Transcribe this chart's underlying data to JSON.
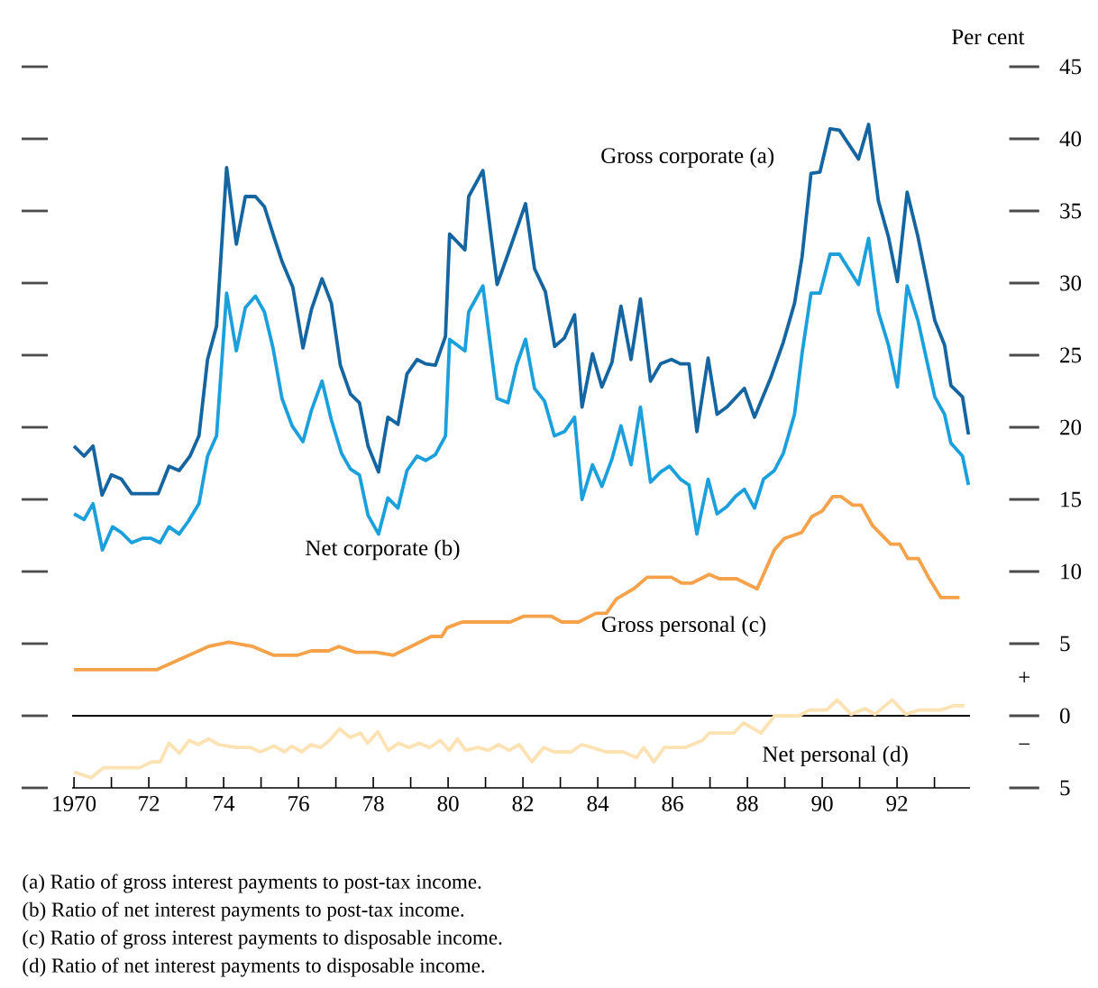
{
  "chart_data": {
    "type": "line",
    "ylabel": "Per cent",
    "xlim": [
      1969.95,
      1993.95
    ],
    "ylim": [
      -5,
      45
    ],
    "xticks": [
      {
        "value": 1970,
        "label": "1970"
      },
      {
        "value": 1971,
        "label": null
      },
      {
        "value": 1972,
        "label": "72"
      },
      {
        "value": 1973,
        "label": null
      },
      {
        "value": 1974,
        "label": "74"
      },
      {
        "value": 1975,
        "label": null
      },
      {
        "value": 1976,
        "label": "76"
      },
      {
        "value": 1977,
        "label": null
      },
      {
        "value": 1978,
        "label": "78"
      },
      {
        "value": 1979,
        "label": null
      },
      {
        "value": 1980,
        "label": "80"
      },
      {
        "value": 1981,
        "label": null
      },
      {
        "value": 1982,
        "label": "82"
      },
      {
        "value": 1983,
        "label": null
      },
      {
        "value": 1984,
        "label": "84"
      },
      {
        "value": 1985,
        "label": null
      },
      {
        "value": 1986,
        "label": "86"
      },
      {
        "value": 1987,
        "label": null
      },
      {
        "value": 1988,
        "label": "88"
      },
      {
        "value": 1989,
        "label": null
      },
      {
        "value": 1990,
        "label": "90"
      },
      {
        "value": 1991,
        "label": null
      },
      {
        "value": 1992,
        "label": "92"
      },
      {
        "value": 1993,
        "label": null
      }
    ],
    "yticks": [
      {
        "value": -5,
        "label": "5"
      },
      0,
      5,
      10,
      15,
      20,
      25,
      30,
      35,
      40,
      45
    ],
    "ref_lines": [
      {
        "axis": "y",
        "value": 0,
        "color": "#000000"
      }
    ],
    "series": [
      {
        "name": "Gross corporate (a)",
        "color": "#1565a0",
        "x": [
          1970.0,
          1970.27,
          1970.51,
          1970.75,
          1971.0,
          1971.27,
          1971.54,
          1972.25,
          1972.54,
          1972.81,
          1973.1,
          1973.34,
          1973.57,
          1973.81,
          1974.08,
          1974.34,
          1974.58,
          1974.85,
          1975.09,
          1975.32,
          1975.56,
          1975.85,
          1976.12,
          1976.35,
          1976.63,
          1976.88,
          1977.12,
          1977.39,
          1977.63,
          1977.86,
          1978.14,
          1978.39,
          1978.66,
          1978.9,
          1979.17,
          1979.4,
          1979.66,
          1979.93,
          1980.04,
          1980.45,
          1980.55,
          1980.93,
          1981.31,
          1981.6,
          1982.07,
          1982.31,
          1982.6,
          1982.85,
          1983.11,
          1983.38,
          1983.58,
          1983.86,
          1984.11,
          1984.38,
          1984.62,
          1984.89,
          1985.14,
          1985.41,
          1985.68,
          1985.97,
          1986.21,
          1986.44,
          1986.65,
          1986.95,
          1987.19,
          1987.45,
          1987.92,
          1988.19,
          1988.62,
          1988.96,
          1989.26,
          1989.46,
          1989.7,
          1989.94,
          1990.21,
          1990.46,
          1990.97,
          1991.24,
          1991.5,
          1991.77,
          1992.01,
          1992.27,
          1992.56,
          1993.01,
          1993.27,
          1993.44,
          1993.75,
          1993.91
        ],
        "values": [
          18.7,
          18.0,
          18.7,
          15.3,
          16.7,
          16.4,
          15.4,
          15.4,
          17.3,
          17.0,
          18.0,
          19.4,
          24.7,
          27.0,
          38.0,
          32.7,
          36.0,
          36.0,
          35.3,
          33.4,
          31.5,
          29.7,
          25.5,
          28.2,
          30.3,
          28.6,
          24.3,
          22.3,
          21.7,
          18.7,
          16.9,
          20.7,
          20.2,
          23.7,
          24.7,
          24.4,
          24.3,
          26.3,
          33.4,
          32.3,
          36.0,
          37.8,
          29.9,
          32.0,
          35.5,
          31.0,
          29.4,
          25.6,
          26.2,
          27.8,
          21.4,
          25.1,
          22.8,
          24.5,
          28.4,
          24.7,
          28.9,
          23.2,
          24.4,
          24.7,
          24.4,
          24.4,
          19.7,
          24.8,
          20.9,
          21.4,
          22.7,
          20.7,
          23.4,
          25.9,
          28.6,
          31.8,
          37.6,
          37.7,
          40.7,
          40.6,
          38.6,
          41.0,
          35.7,
          33.2,
          30.1,
          36.3,
          33.2,
          27.4,
          25.7,
          22.9,
          22.1,
          19.5
        ]
      },
      {
        "name": "Net corporate (b)",
        "color": "#1ca0dc",
        "x": [
          1970.0,
          1970.27,
          1970.51,
          1970.76,
          1971.03,
          1971.27,
          1971.54,
          1971.83,
          1972.06,
          1972.3,
          1972.54,
          1972.81,
          1973.06,
          1973.34,
          1973.57,
          1973.81,
          1974.08,
          1974.34,
          1974.58,
          1974.85,
          1975.09,
          1975.32,
          1975.56,
          1975.83,
          1976.12,
          1976.35,
          1976.63,
          1976.88,
          1977.15,
          1977.39,
          1977.63,
          1977.86,
          1978.14,
          1978.39,
          1978.66,
          1978.9,
          1979.17,
          1979.4,
          1979.66,
          1979.93,
          1980.04,
          1980.45,
          1980.55,
          1980.93,
          1981.31,
          1981.6,
          1981.83,
          1982.07,
          1982.31,
          1982.58,
          1982.84,
          1983.11,
          1983.38,
          1983.58,
          1983.86,
          1984.11,
          1984.38,
          1984.62,
          1984.89,
          1985.14,
          1985.41,
          1985.68,
          1985.92,
          1986.21,
          1986.44,
          1986.65,
          1986.95,
          1987.19,
          1987.45,
          1987.68,
          1987.92,
          1988.19,
          1988.43,
          1988.72,
          1988.96,
          1989.26,
          1989.46,
          1989.7,
          1989.94,
          1990.21,
          1990.46,
          1990.97,
          1991.24,
          1991.5,
          1991.77,
          1992.01,
          1992.27,
          1992.56,
          1993.01,
          1993.27,
          1993.44,
          1993.75,
          1993.91
        ],
        "values": [
          14.0,
          13.6,
          14.7,
          11.5,
          13.1,
          12.7,
          12.0,
          12.3,
          12.3,
          12.0,
          13.1,
          12.6,
          13.5,
          14.7,
          18.0,
          19.4,
          29.3,
          25.3,
          28.3,
          29.1,
          28.0,
          25.5,
          22.0,
          20.1,
          19.0,
          21.2,
          23.2,
          20.5,
          18.2,
          17.1,
          16.7,
          13.9,
          12.6,
          15.1,
          14.4,
          17.0,
          18.0,
          17.7,
          18.1,
          19.4,
          26.1,
          25.3,
          28.0,
          29.8,
          22.0,
          21.7,
          24.3,
          26.1,
          22.7,
          21.8,
          19.4,
          19.7,
          20.7,
          15.0,
          17.4,
          15.9,
          17.8,
          20.1,
          17.4,
          21.4,
          16.2,
          16.9,
          17.3,
          16.4,
          16.0,
          12.6,
          16.4,
          14.0,
          14.5,
          15.2,
          15.7,
          14.4,
          16.4,
          17.0,
          18.2,
          20.9,
          25.1,
          29.3,
          29.3,
          32.0,
          32.0,
          29.9,
          33.1,
          28.0,
          25.7,
          22.8,
          29.8,
          27.4,
          22.1,
          20.9,
          18.9,
          18.0,
          16.0
        ]
      },
      {
        "name": "Gross personal (c)",
        "color": "#f5a24a",
        "x": [
          1970.0,
          1972.22,
          1973.59,
          1974.14,
          1974.78,
          1975.33,
          1975.98,
          1976.34,
          1976.8,
          1977.08,
          1977.53,
          1978.08,
          1978.54,
          1979.55,
          1979.83,
          1979.97,
          1980.38,
          1981.66,
          1982.03,
          1982.76,
          1983.04,
          1983.49,
          1983.95,
          1984.23,
          1984.5,
          1984.96,
          1985.32,
          1985.97,
          1986.24,
          1986.52,
          1986.98,
          1987.25,
          1987.71,
          1988.26,
          1988.72,
          1988.99,
          1989.45,
          1989.72,
          1990.0,
          1990.28,
          1990.5,
          1990.82,
          1991.04,
          1991.34,
          1991.83,
          1992.07,
          1992.29,
          1992.57,
          1992.84,
          1993.17,
          1993.67
        ],
        "values": [
          3.2,
          3.2,
          4.8,
          5.1,
          4.8,
          4.2,
          4.2,
          4.5,
          4.5,
          4.8,
          4.4,
          4.4,
          4.2,
          5.5,
          5.5,
          6.1,
          6.5,
          6.5,
          6.9,
          6.9,
          6.5,
          6.5,
          7.1,
          7.1,
          8.1,
          8.8,
          9.6,
          9.6,
          9.2,
          9.2,
          9.8,
          9.5,
          9.5,
          8.8,
          11.5,
          12.3,
          12.7,
          13.8,
          14.2,
          15.2,
          15.2,
          14.6,
          14.6,
          13.2,
          11.9,
          11.9,
          10.9,
          10.9,
          9.6,
          8.2,
          8.2
        ]
      },
      {
        "name": "Net personal (d)",
        "color": "#fde2b4",
        "x": [
          1970.0,
          1970.46,
          1970.79,
          1971.75,
          1972.08,
          1972.3,
          1972.54,
          1972.82,
          1973.08,
          1973.32,
          1973.6,
          1973.87,
          1974.33,
          1974.71,
          1974.98,
          1975.35,
          1975.63,
          1975.82,
          1976.09,
          1976.33,
          1976.59,
          1976.83,
          1977.1,
          1977.38,
          1977.66,
          1977.85,
          1978.12,
          1978.4,
          1978.68,
          1978.96,
          1979.23,
          1979.51,
          1979.79,
          1980.03,
          1980.25,
          1980.47,
          1980.8,
          1981.08,
          1981.35,
          1981.63,
          1981.9,
          1982.24,
          1982.55,
          1982.83,
          1983.29,
          1983.57,
          1983.85,
          1984.21,
          1984.67,
          1985.04,
          1985.23,
          1985.5,
          1985.78,
          1986.34,
          1986.8,
          1986.98,
          1987.63,
          1987.9,
          1988.36,
          1988.73,
          1989.38,
          1989.66,
          1990.12,
          1990.4,
          1990.77,
          1991.14,
          1991.41,
          1991.87,
          1992.24,
          1992.6,
          1993.16,
          1993.53,
          1993.8
        ],
        "values": [
          -3.9,
          -4.3,
          -3.6,
          -3.6,
          -3.2,
          -3.2,
          -1.9,
          -2.6,
          -1.7,
          -2.0,
          -1.6,
          -2.0,
          -2.2,
          -2.2,
          -2.5,
          -2.1,
          -2.5,
          -2.1,
          -2.5,
          -2.0,
          -2.2,
          -1.7,
          -0.9,
          -1.5,
          -1.2,
          -1.9,
          -1.1,
          -2.4,
          -1.9,
          -2.2,
          -1.9,
          -2.2,
          -1.7,
          -2.4,
          -1.6,
          -2.4,
          -2.2,
          -2.4,
          -2.0,
          -2.4,
          -2.0,
          -3.2,
          -2.2,
          -2.5,
          -2.5,
          -2.0,
          -2.2,
          -2.5,
          -2.5,
          -2.9,
          -2.2,
          -3.2,
          -2.2,
          -2.2,
          -1.7,
          -1.2,
          -1.2,
          -0.5,
          -1.2,
          0.0,
          0.0,
          0.4,
          0.4,
          1.1,
          0.1,
          0.5,
          0.1,
          1.1,
          0.1,
          0.4,
          0.4,
          0.7,
          0.7
        ]
      }
    ],
    "annotations": [
      "+",
      "−",
      "(a)   Ratio of gross interest payments to post-tax income.",
      "(b)   Ratio of net interest payments to post-tax income.",
      "(c)   Ratio of gross interest payments to disposable income.",
      "(d)   Ratio of net interest payments to disposable income."
    ]
  }
}
